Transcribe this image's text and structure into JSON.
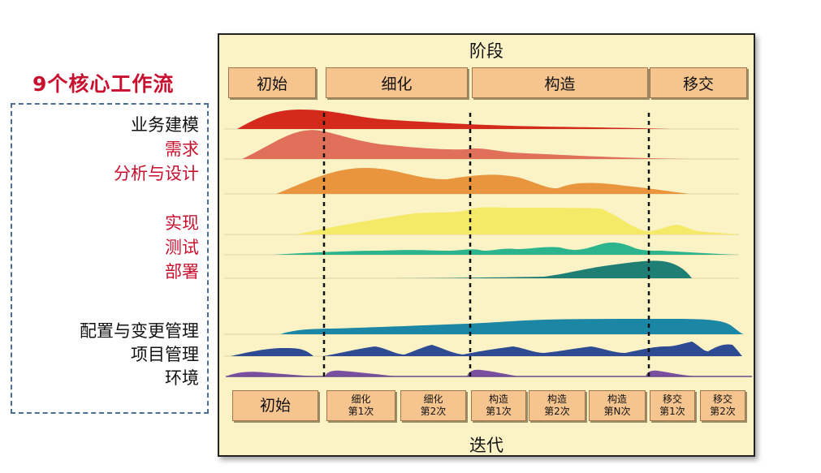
{
  "title": "9个核心工作流",
  "workflows": [
    {
      "label": "业务建模",
      "color_class": "black"
    },
    {
      "label": "需求",
      "color_class": "red"
    },
    {
      "label": "分析与设计",
      "color_class": "red"
    },
    {
      "label": "实现",
      "color_class": "red"
    },
    {
      "label": "测试",
      "color_class": "red"
    },
    {
      "label": "部署",
      "color_class": "red"
    },
    {
      "label": "配置与变更管理",
      "color_class": "black"
    },
    {
      "label": "项目管理",
      "color_class": "black"
    },
    {
      "label": "环境",
      "color_class": "black"
    }
  ],
  "diagram": {
    "top_heading": "阶段",
    "bottom_heading": "迭代",
    "phases": [
      "初始",
      "细化",
      "构造",
      "移交"
    ],
    "iterations": [
      {
        "l1": "初始",
        "l2": ""
      },
      {
        "l1": "细化",
        "l2": "第1次"
      },
      {
        "l1": "细化",
        "l2": "第2次"
      },
      {
        "l1": "构造",
        "l2": "第1次"
      },
      {
        "l1": "构造",
        "l2": "第2次"
      },
      {
        "l1": "构造",
        "l2": "第N次"
      },
      {
        "l1": "移交",
        "l2": "第1次"
      },
      {
        "l1": "移交",
        "l2": "第2次"
      }
    ],
    "colors": {
      "title_red": "#c8102e",
      "panel_bg": "#fbf3c6",
      "phase_box": "#f6c48e",
      "dashed_border": "#4a6e96",
      "wave_business_modeling": "#d42a1c",
      "wave_requirements": "#e0705a",
      "wave_analysis_design": "#e8953d",
      "wave_implementation": "#f5e968",
      "wave_test": "#2cb58c",
      "wave_deployment": "#1f7f75",
      "wave_config_change": "#1b87a4",
      "wave_project_mgmt": "#2d4a93",
      "wave_environment": "#7b4fa0"
    }
  }
}
